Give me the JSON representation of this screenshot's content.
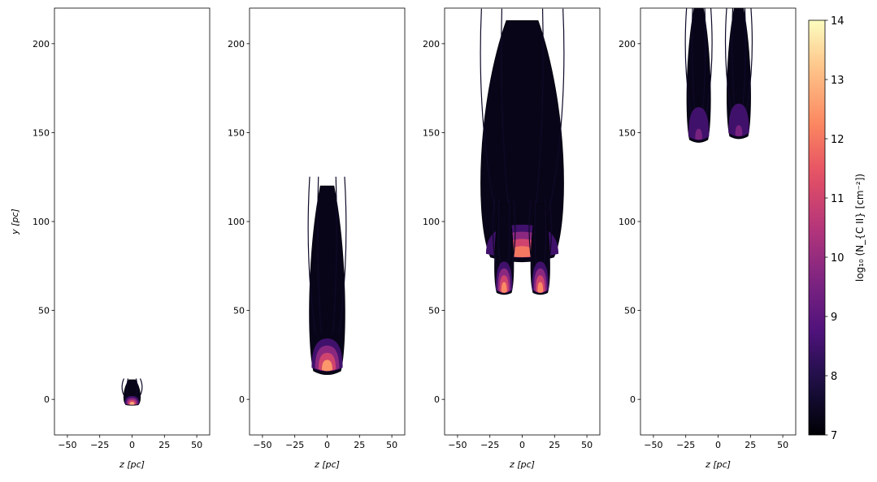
{
  "chart_data": {
    "type": "heatmap",
    "panels": [
      {
        "xlabel": "z [pc]",
        "ylabel": "y [pc]",
        "xlim": [
          -60,
          60
        ],
        "ylim": [
          -20,
          220
        ],
        "xticks": [
          -50,
          -25,
          0,
          25,
          50
        ],
        "yticks": [
          0,
          50,
          100,
          150,
          200
        ],
        "structures": [
          {
            "z_center": 0,
            "y_min": -3,
            "y_max": 11,
            "z_half_width": 7,
            "peak_log_N": 12.8
          }
        ]
      },
      {
        "xlabel": "z [pc]",
        "ylabel": "",
        "xlim": [
          -60,
          60
        ],
        "ylim": [
          -20,
          220
        ],
        "xticks": [
          -50,
          -25,
          0,
          25,
          50
        ],
        "yticks": [
          0,
          50,
          100,
          150,
          200
        ],
        "structures": [
          {
            "z_center": 0,
            "y_min": 16,
            "y_max": 120,
            "z_half_width": 15,
            "peak_log_N": 12.5
          }
        ]
      },
      {
        "xlabel": "z [pc]",
        "ylabel": "",
        "xlim": [
          -60,
          60
        ],
        "ylim": [
          -20,
          220
        ],
        "xticks": [
          -50,
          -25,
          0,
          25,
          50
        ],
        "yticks": [
          0,
          50,
          100,
          150,
          200
        ],
        "structures": [
          {
            "z_center": 0,
            "y_min": 80,
            "y_max": 213,
            "z_half_width": 35,
            "peak_log_N": 12.0
          },
          {
            "z_center": -14,
            "y_min": 60,
            "y_max": 110,
            "z_half_width": 8,
            "peak_log_N": 12.3
          },
          {
            "z_center": 14,
            "y_min": 60,
            "y_max": 110,
            "z_half_width": 8,
            "peak_log_N": 12.3
          }
        ]
      },
      {
        "xlabel": "z [pc]",
        "ylabel": "",
        "xlim": [
          -60,
          60
        ],
        "ylim": [
          -20,
          220
        ],
        "xticks": [
          -50,
          -25,
          0,
          25,
          50
        ],
        "yticks": [
          0,
          50,
          100,
          150,
          200
        ],
        "structures": [
          {
            "z_center": -15,
            "y_min": 146,
            "y_max": 220,
            "z_half_width": 10,
            "peak_log_N": 9.5
          },
          {
            "z_center": 16,
            "y_min": 148,
            "y_max": 220,
            "z_half_width": 10,
            "peak_log_N": 9.5
          }
        ]
      }
    ],
    "colorbar": {
      "label": "log₁₀ (N_{C II} [cm⁻²])",
      "colormap": "magma",
      "range": [
        7,
        14
      ],
      "ticks": [
        7,
        8,
        9,
        10,
        11,
        12,
        13,
        14
      ]
    },
    "grid": false
  }
}
